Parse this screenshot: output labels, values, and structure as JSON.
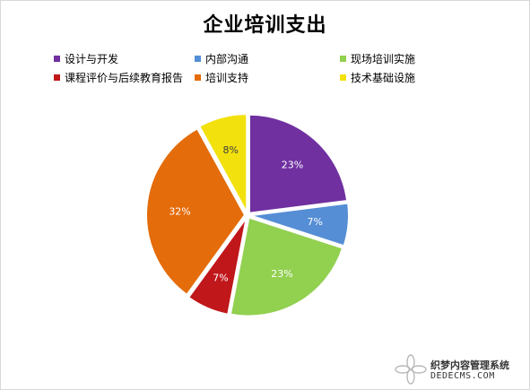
{
  "chart_data": {
    "type": "pie",
    "title": "企业培训支出",
    "categories": [
      "设计与开发",
      "内部沟通",
      "现场培训实施",
      "课程评价与后续教育报告",
      "培训支持",
      "技术基础设施"
    ],
    "values": [
      23,
      7,
      23,
      7,
      32,
      8
    ],
    "data_labels": [
      "23%",
      "7%",
      "23%",
      "7%",
      "32%",
      "8%"
    ],
    "colors": [
      "#7030a0",
      "#558ed5",
      "#92d050",
      "#c0171b",
      "#e46c0a",
      "#f2e10d"
    ],
    "legend_position": "top"
  },
  "watermark": {
    "line1": "织梦内容管理系统",
    "line2": "DEDECMS.COM"
  }
}
